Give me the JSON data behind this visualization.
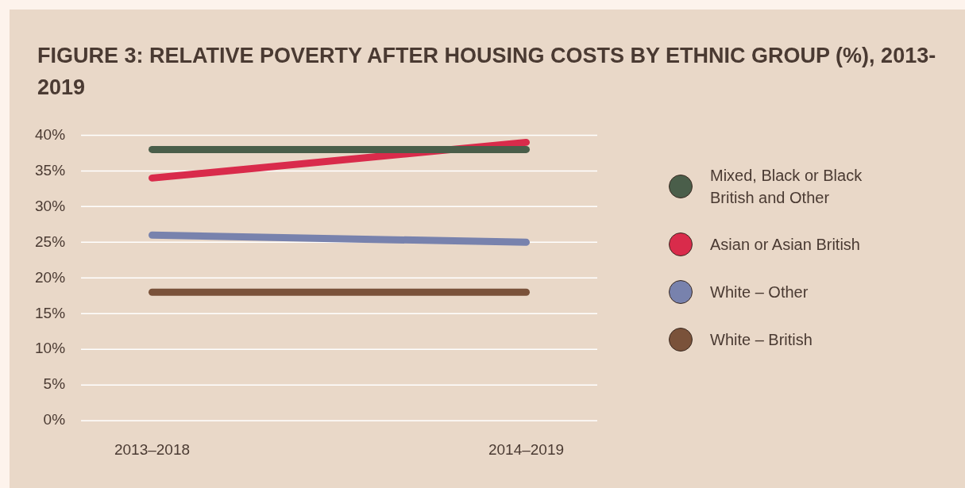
{
  "chart_data": {
    "type": "line",
    "title": "FIGURE 3: RELATIVE POVERTY AFTER HOUSING COSTS BY ETHNIC GROUP (%), 2013-2019",
    "categories": [
      "2013–2018",
      "2014–2019"
    ],
    "series": [
      {
        "name": "Mixed, Black or Black British and Other",
        "color": "#4a5e4a",
        "values": [
          38,
          38
        ]
      },
      {
        "name": "Asian or Asian British",
        "color": "#d92b4b",
        "values": [
          34,
          39
        ]
      },
      {
        "name": "White – Other",
        "color": "#7882ad",
        "values": [
          26,
          25
        ]
      },
      {
        "name": "White – British",
        "color": "#7a523a",
        "values": [
          18,
          18
        ]
      }
    ],
    "ylim": [
      0,
      40
    ],
    "yticks": [
      {
        "value": 0,
        "label": "0%"
      },
      {
        "value": 5,
        "label": "5%"
      },
      {
        "value": 10,
        "label": "10%"
      },
      {
        "value": 15,
        "label": "15%"
      },
      {
        "value": 20,
        "label": "20%"
      },
      {
        "value": 25,
        "label": "25%"
      },
      {
        "value": 30,
        "label": "30%"
      },
      {
        "value": 35,
        "label": "35%"
      },
      {
        "value": 40,
        "label": "40%"
      }
    ],
    "grid": "y",
    "legend": "right",
    "marker": "none",
    "line_style": "solid"
  }
}
